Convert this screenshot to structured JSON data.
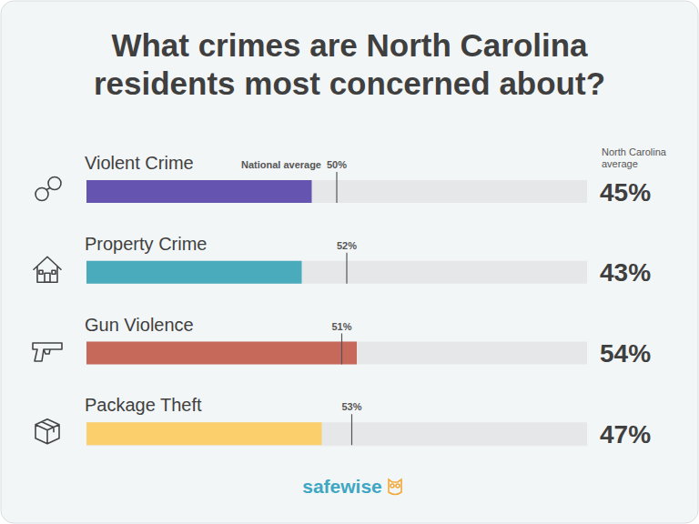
{
  "chart_data": {
    "type": "bar",
    "orientation": "horizontal",
    "title": "What crimes are North Carolina residents most concerned about?",
    "categories": [
      "Violent Crime",
      "Property Crime",
      "Gun Violence",
      "Package Theft"
    ],
    "series": [
      {
        "name": "North Carolina average",
        "colors": [
          "#6655b0",
          "#4aabbd",
          "#c7695a",
          "#fbcf6b"
        ],
        "values": [
          45,
          43,
          54,
          47
        ],
        "value_labels": [
          "45%",
          "43%",
          "54%",
          "47%"
        ]
      },
      {
        "name": "National average",
        "color": "#555555",
        "marker": "vline",
        "values": [
          50,
          52,
          51,
          53
        ],
        "value_labels": [
          "50%",
          "52%",
          "51%",
          "53%"
        ]
      }
    ],
    "xlim": [
      0,
      100
    ],
    "tick_labels": false,
    "data_labels": true,
    "brand": "safewise"
  }
}
